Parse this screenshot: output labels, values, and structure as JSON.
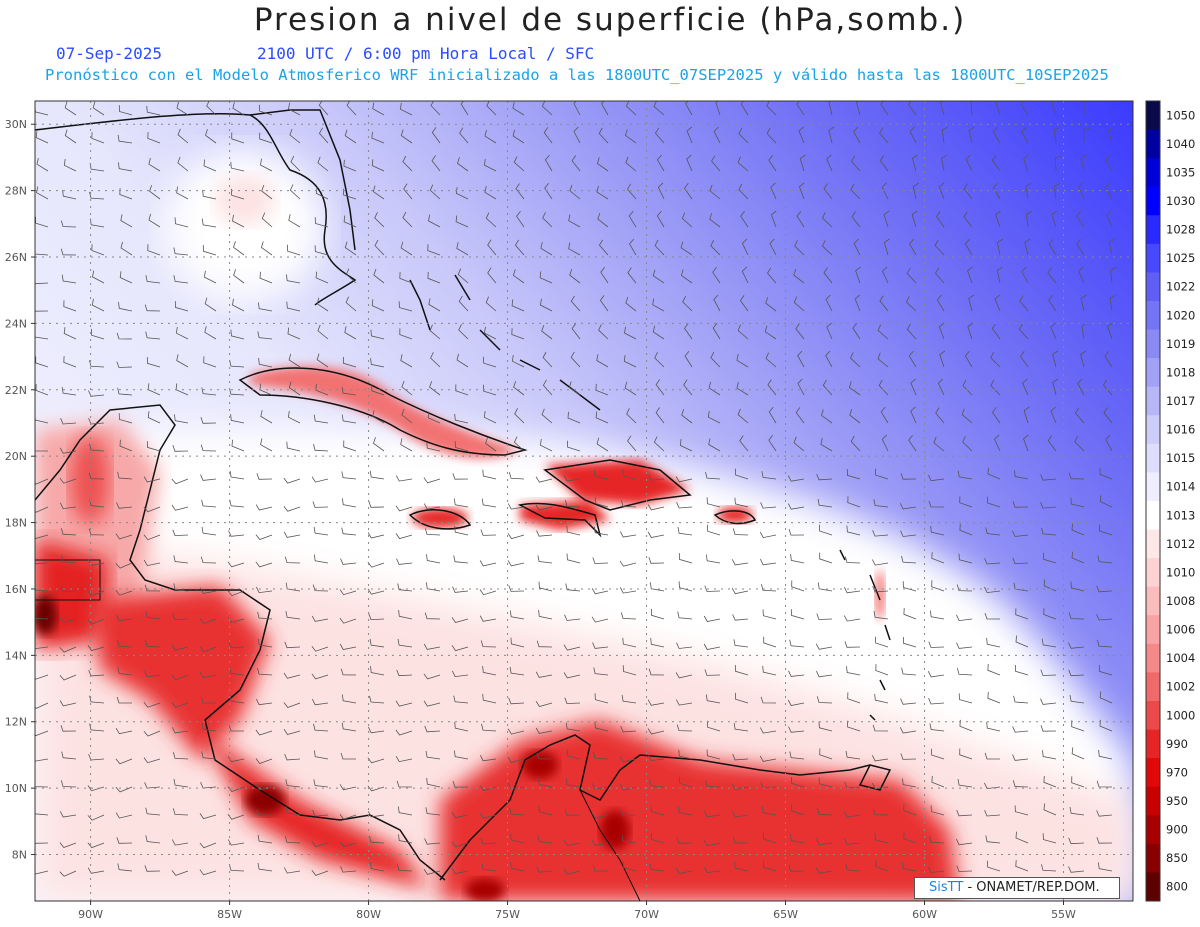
{
  "header": {
    "title": "Presion a nivel de superficie (hPa,somb.)",
    "date": "07-Sep-2025",
    "time": "2100 UTC / 6:00 pm Hora Local / SFC",
    "forecast_note": "Pronóstico con el Modelo Atmosferico WRF inicializado a las 1800UTC_07SEP2025 y válido hasta las  1800UTC_10SEP2025"
  },
  "map": {
    "lat_labels": [
      "30N",
      "28N",
      "26N",
      "24N",
      "22N",
      "20N",
      "18N",
      "16N",
      "14N",
      "12N",
      "10N",
      "8N"
    ],
    "lat_values": [
      30,
      28,
      26,
      24,
      22,
      20,
      18,
      16,
      14,
      12,
      10,
      8
    ],
    "lon_labels": [
      "90W",
      "85W",
      "80W",
      "75W",
      "70W",
      "65W",
      "60W",
      "55W"
    ],
    "lon_values": [
      -90,
      -85,
      -80,
      -75,
      -70,
      -65,
      -60,
      -55
    ],
    "extent": {
      "lon_min": -92,
      "lon_max": -52.5,
      "lat_min": 6.6,
      "lat_max": 30.7
    }
  },
  "colorbar": {
    "labels": [
      "1050",
      "1040",
      "1035",
      "1030",
      "1028",
      "1025",
      "1022",
      "1020",
      "1019",
      "1018",
      "1017",
      "1016",
      "1015",
      "1014",
      "1013",
      "1012",
      "1010",
      "1008",
      "1006",
      "1004",
      "1002",
      "1000",
      "990",
      "970",
      "950",
      "900",
      "850",
      "800"
    ],
    "colors": [
      "#0a0a4a",
      "#0000a0",
      "#0000d8",
      "#0000ff",
      "#2a2aff",
      "#4848ff",
      "#5f5ff6",
      "#7474f4",
      "#8a8af5",
      "#a1a1f6",
      "#b7b7f8",
      "#cdcdfa",
      "#dedefc",
      "#eeeefe",
      "#ffffff",
      "#fde8e8",
      "#fcd2d2",
      "#fabcbc",
      "#f8a4a4",
      "#f58888",
      "#f16a6a",
      "#ec4a4a",
      "#e62626",
      "#e00808",
      "#c80000",
      "#a80000",
      "#880000",
      "#5e0000"
    ]
  },
  "credit": {
    "brand": "SisTT",
    "org": "- ONAMET/REP.DOM."
  }
}
